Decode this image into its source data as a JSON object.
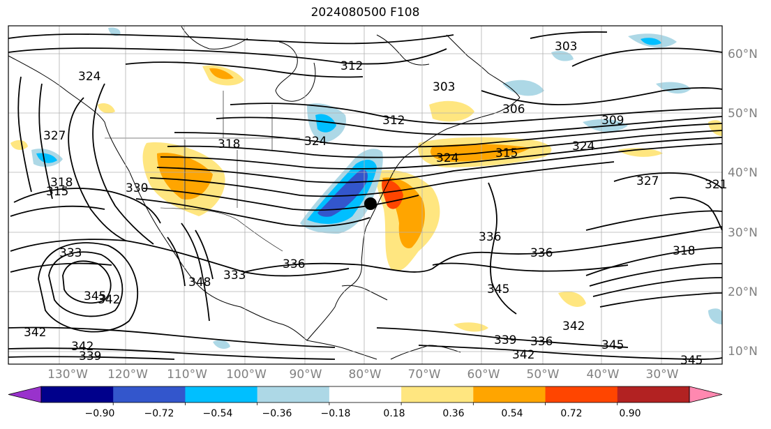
{
  "title": "2024080500 F108",
  "lat_labels": [
    "60°N",
    "50°N",
    "40°N",
    "30°N",
    "20°N",
    "10°N"
  ],
  "lon_labels": [
    "130°W",
    "120°W",
    "110°W",
    "100°W",
    "90°W",
    "80°W",
    "70°W",
    "60°W",
    "50°W",
    "40°W",
    "30°W"
  ],
  "colorbar": {
    "ticks": [
      "−0.90",
      "−0.72",
      "−0.54",
      "−0.36",
      "−0.18",
      "0.18",
      "0.36",
      "0.54",
      "0.72",
      "0.90"
    ],
    "colors": [
      "#9932cc",
      "#00008b",
      "#3356cc",
      "#00bfff",
      "#add8e6",
      "#ffffff",
      "#ffe680",
      "#ffa500",
      "#ff4500",
      "#b22222",
      "#ff88b0"
    ]
  },
  "contour_labels": [
    "303",
    "306",
    "309",
    "312",
    "315",
    "318",
    "321",
    "324",
    "327",
    "330",
    "333",
    "336",
    "339",
    "342",
    "345",
    "348"
  ],
  "colors": {
    "contour": "#000000",
    "coast": "#000000",
    "grid": "#b0b0b0",
    "axis_label": "#808080"
  }
}
